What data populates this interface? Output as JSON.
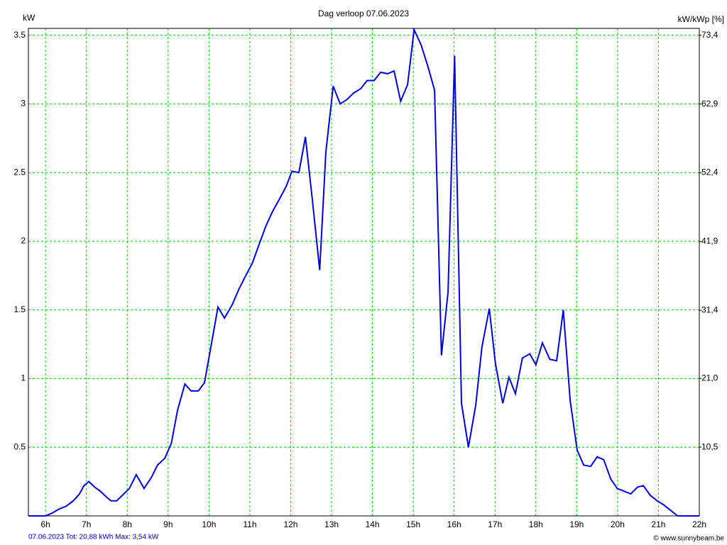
{
  "chart_data": {
    "type": "line",
    "title": "Dag  verloop 07.06.2023",
    "y_label": "kW",
    "y2_label": "kW/kWp [%]",
    "footer": "07.06.2023 Tot: 20,88 kWh Max: 3,54 kW",
    "copyright": "© www.sunnybeam.be",
    "x": [
      5.58,
      6.0,
      6.16,
      6.33,
      6.5,
      6.68,
      6.83,
      6.94,
      7.06,
      7.2,
      7.34,
      7.48,
      7.6,
      7.74,
      7.88,
      8.05,
      8.22,
      8.41,
      8.59,
      8.74,
      8.92,
      9.08,
      9.23,
      9.41,
      9.56,
      9.74,
      9.89,
      10.07,
      10.22,
      10.38,
      10.57,
      10.73,
      10.9,
      11.06,
      11.23,
      11.39,
      11.56,
      11.73,
      11.89,
      12.03,
      12.2,
      12.36,
      12.53,
      12.71,
      12.86,
      13.04,
      13.21,
      13.37,
      13.54,
      13.71,
      13.87,
      14.04,
      14.2,
      14.37,
      14.53,
      14.69,
      14.86,
      15.02,
      15.19,
      15.36,
      15.52,
      15.69,
      15.85,
      16.01,
      16.18,
      16.35,
      16.53,
      16.68,
      16.86,
      17.01,
      17.19,
      17.34,
      17.5,
      17.67,
      17.85,
      18.0,
      18.16,
      18.34,
      18.51,
      18.67,
      18.84,
      19.01,
      19.17,
      19.34,
      19.5,
      19.66,
      19.83,
      19.99,
      20.16,
      20.32,
      20.49,
      20.63,
      20.8,
      20.97,
      21.13,
      21.3,
      21.47,
      22.0
    ],
    "series": [
      {
        "name": "kW",
        "color": "#0000dd",
        "values": [
          0,
          0,
          0.02,
          0.05,
          0.07,
          0.11,
          0.16,
          0.22,
          0.25,
          0.21,
          0.18,
          0.14,
          0.11,
          0.11,
          0.15,
          0.2,
          0.3,
          0.2,
          0.28,
          0.37,
          0.42,
          0.53,
          0.77,
          0.96,
          0.91,
          0.91,
          0.97,
          1.27,
          1.52,
          1.44,
          1.54,
          1.65,
          1.75,
          1.84,
          1.98,
          2.11,
          2.22,
          2.31,
          2.4,
          2.51,
          2.5,
          2.76,
          2.3,
          1.79,
          2.65,
          3.13,
          3.0,
          3.03,
          3.08,
          3.11,
          3.17,
          3.17,
          3.23,
          3.22,
          3.24,
          3.02,
          3.14,
          3.54,
          3.43,
          3.27,
          3.1,
          1.17,
          1.63,
          3.35,
          0.82,
          0.5,
          0.81,
          1.23,
          1.51,
          1.11,
          0.82,
          1.01,
          0.89,
          1.15,
          1.18,
          1.1,
          1.26,
          1.14,
          1.13,
          1.5,
          0.84,
          0.48,
          0.37,
          0.36,
          0.43,
          0.41,
          0.27,
          0.2,
          0.18,
          0.16,
          0.21,
          0.22,
          0.15,
          0.11,
          0.08,
          0.04,
          0,
          0
        ]
      }
    ],
    "xlim": [
      5.58,
      22
    ],
    "xticks": [
      {
        "value": 6,
        "label": "6h"
      },
      {
        "value": 7,
        "label": "7h"
      },
      {
        "value": 8,
        "label": "8h"
      },
      {
        "value": 9,
        "label": "9h"
      },
      {
        "value": 10,
        "label": "10h"
      },
      {
        "value": 11,
        "label": "11h"
      },
      {
        "value": 12,
        "label": "12h"
      },
      {
        "value": 13,
        "label": "13h"
      },
      {
        "value": 14,
        "label": "14h"
      },
      {
        "value": 15,
        "label": "15h"
      },
      {
        "value": 16,
        "label": "16h"
      },
      {
        "value": 17,
        "label": "17h"
      },
      {
        "value": 18,
        "label": "18h"
      },
      {
        "value": 19,
        "label": "19h"
      },
      {
        "value": 20,
        "label": "20h"
      },
      {
        "value": 21,
        "label": "21h"
      },
      {
        "value": 22,
        "label": "22h"
      }
    ],
    "ylim": [
      0,
      3.55
    ],
    "yticks": [
      0.5,
      1,
      1.5,
      2,
      2.5,
      3,
      3.5
    ],
    "y2lim": [
      0,
      74.45
    ],
    "y2ticks": [
      {
        "value": 10.5,
        "label": "10,5"
      },
      {
        "value": 21.0,
        "label": "21,0"
      },
      {
        "value": 31.4,
        "label": "31,4"
      },
      {
        "value": 41.9,
        "label": "41,9"
      },
      {
        "value": 52.4,
        "label": "52,4"
      },
      {
        "value": 62.9,
        "label": "62,9"
      },
      {
        "value": 73.4,
        "label": "73,4"
      }
    ],
    "grid": true,
    "grid_color": "#00cc00"
  }
}
